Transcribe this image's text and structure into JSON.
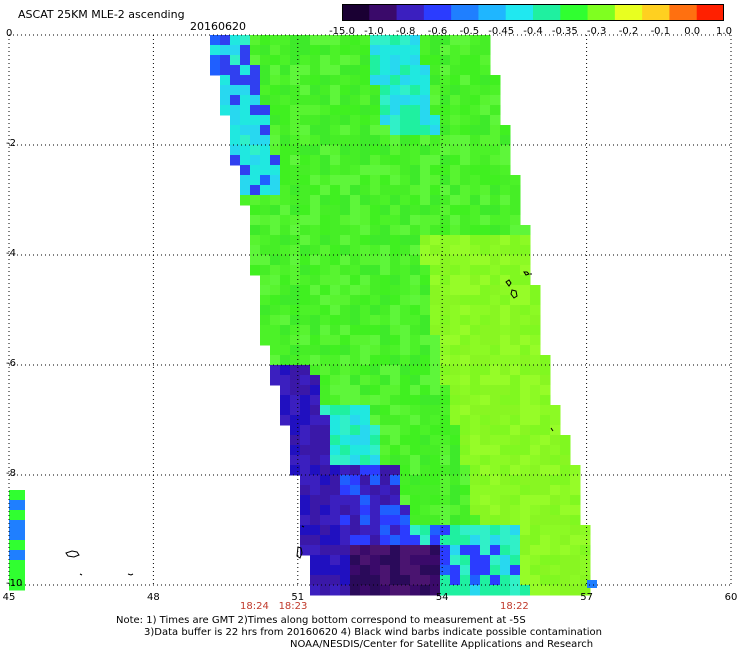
{
  "header": {
    "title": "ASCAT 25KM MLE-2 ascending",
    "date": "20160620"
  },
  "colorbar": {
    "labels": [
      "-15.0",
      "-1.0",
      "-0.8",
      "-0.6",
      "-0.5",
      "-0.45",
      "-0.4",
      "-0.35",
      "-0.3",
      "-0.2",
      "-0.1",
      "0.0",
      "1.0"
    ],
    "colors": [
      "#1a0033",
      "#3a0a6a",
      "#3b1fbf",
      "#2b3cff",
      "#1f7fff",
      "#1fb6ff",
      "#20e8f0",
      "#1ff0a0",
      "#30ff30",
      "#7fff20",
      "#e8ff20",
      "#ffd020",
      "#ff7010",
      "#ff2000"
    ]
  },
  "map": {
    "y_ticks": [
      "0",
      "-2",
      "-4",
      "-6",
      "-8",
      "-10"
    ],
    "x_ticks": [
      "45",
      "48",
      "51",
      "54",
      "57",
      "60"
    ],
    "time_ticks": [
      {
        "text": "18:24",
        "lon": 50.1
      },
      {
        "text": "18:23",
        "lon": 50.9
      },
      {
        "text": "18:22",
        "lon": 55.5
      }
    ]
  },
  "notes": {
    "line1": "Note: 1) Times are GMT 2)Times along bottom correspond to measurement at -5S",
    "line2": "3)Data buffer is 22 hrs from 20160620 4) Black wind barbs indicate possible contamination",
    "line3": "NOAA/NESDIS/Center for Satellite Applications and Research"
  }
}
